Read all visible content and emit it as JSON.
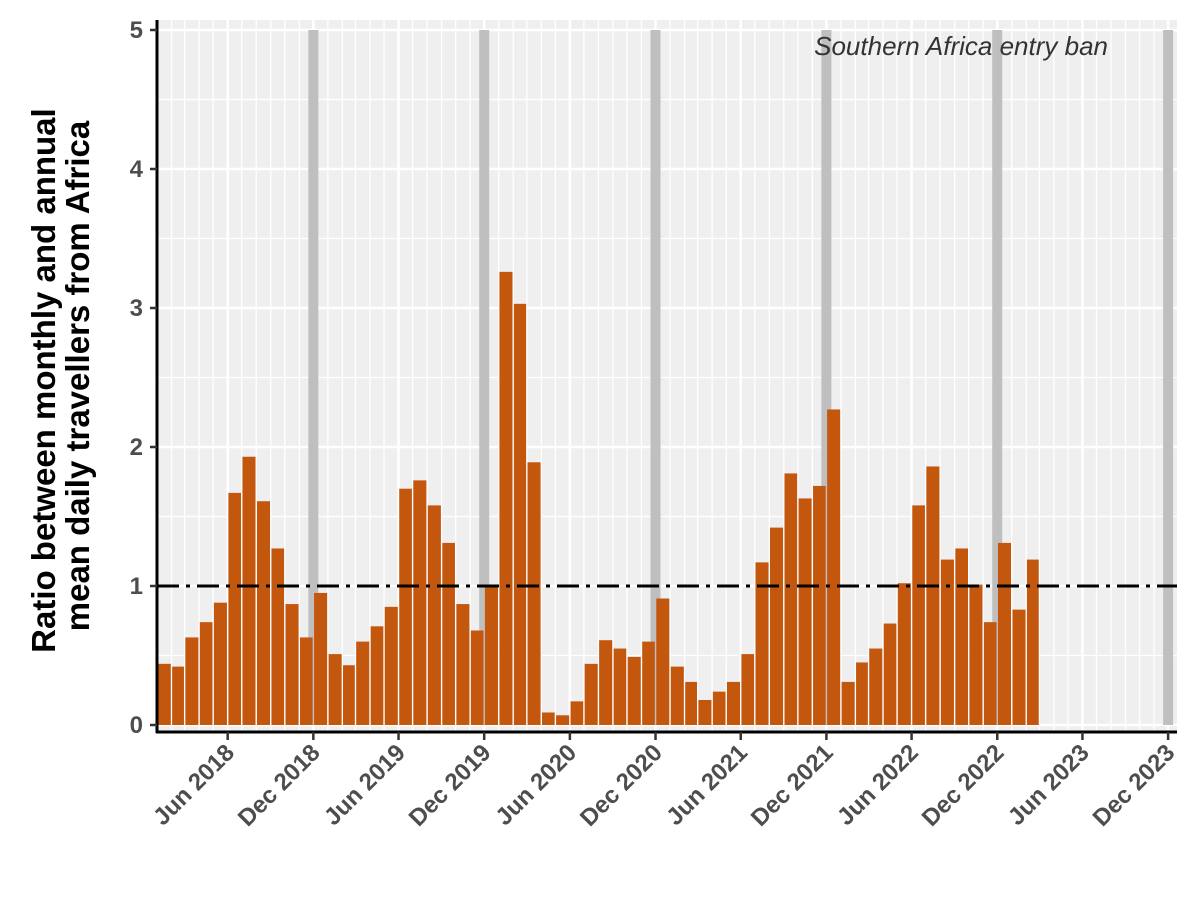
{
  "chart_data": {
    "type": "bar",
    "ylabel_lines": [
      "Ratio between monthly and annual",
      "mean daily travellers from Africa"
    ],
    "xlabel": "",
    "annotation": "Southern Africa entry ban",
    "ylim": [
      0,
      5
    ],
    "y_ticks": [
      0,
      1,
      2,
      3,
      4,
      5
    ],
    "x_range": [
      "2018-01-01",
      "2023-12-20"
    ],
    "x_ticks": [
      {
        "date": "2018-06-01",
        "label": "Jun 2018"
      },
      {
        "date": "2018-12-01",
        "label": "Dec 2018"
      },
      {
        "date": "2019-06-01",
        "label": "Jun 2019"
      },
      {
        "date": "2019-12-01",
        "label": "Dec 2019"
      },
      {
        "date": "2020-06-01",
        "label": "Jun 2020"
      },
      {
        "date": "2020-12-01",
        "label": "Dec 2020"
      },
      {
        "date": "2021-06-01",
        "label": "Jun 2021"
      },
      {
        "date": "2021-12-01",
        "label": "Dec 2021"
      },
      {
        "date": "2022-06-01",
        "label": "Jun 2022"
      },
      {
        "date": "2022-12-01",
        "label": "Dec 2022"
      },
      {
        "date": "2023-06-01",
        "label": "Jun 2023"
      },
      {
        "date": "2023-12-01",
        "label": "Dec 2023"
      }
    ],
    "reference_line": 1,
    "ban_markers": [
      "2018-12-01",
      "2019-12-01",
      "2020-12-01",
      "2021-12-01",
      "2022-12-01",
      "2023-12-01"
    ],
    "bar_color": "#c4570e",
    "ban_color": "#bfbfbf",
    "panel_background": "#efefef",
    "grid": true,
    "x": [
      "2018-01",
      "2018-02",
      "2018-03",
      "2018-04",
      "2018-05",
      "2018-06",
      "2018-07",
      "2018-08",
      "2018-09",
      "2018-10",
      "2018-11",
      "2018-12",
      "2019-01",
      "2019-02",
      "2019-03",
      "2019-04",
      "2019-05",
      "2019-06",
      "2019-07",
      "2019-08",
      "2019-09",
      "2019-10",
      "2019-11",
      "2019-12",
      "2020-01",
      "2020-02",
      "2020-03",
      "2020-04",
      "2020-05",
      "2020-06",
      "2020-07",
      "2020-08",
      "2020-09",
      "2020-10",
      "2020-11",
      "2020-12",
      "2021-01",
      "2021-02",
      "2021-03",
      "2021-04",
      "2021-05",
      "2021-06",
      "2021-07",
      "2021-08",
      "2021-09",
      "2021-10",
      "2021-11",
      "2021-12",
      "2022-01",
      "2022-02",
      "2022-03",
      "2022-04",
      "2022-05",
      "2022-06",
      "2022-07",
      "2022-08",
      "2022-09",
      "2022-10",
      "2022-11",
      "2022-12",
      "2023-01",
      "2023-02"
    ],
    "values": [
      0.44,
      0.42,
      0.63,
      0.74,
      0.88,
      1.67,
      1.93,
      1.61,
      1.27,
      0.87,
      0.63,
      0.95,
      0.51,
      0.43,
      0.6,
      0.71,
      0.85,
      1.7,
      1.76,
      1.58,
      1.31,
      0.87,
      0.68,
      1.01,
      3.26,
      3.03,
      1.89,
      0.09,
      0.07,
      0.17,
      0.44,
      0.61,
      0.55,
      0.49,
      0.6,
      0.91,
      0.42,
      0.31,
      0.18,
      0.24,
      0.31,
      0.51,
      1.17,
      1.42,
      1.81,
      1.63,
      1.72,
      2.27,
      0.31,
      0.45,
      0.55,
      0.73,
      1.02,
      1.58,
      1.86,
      1.19,
      1.27,
      1.01,
      0.74,
      1.31,
      0.83,
      1.19
    ]
  }
}
